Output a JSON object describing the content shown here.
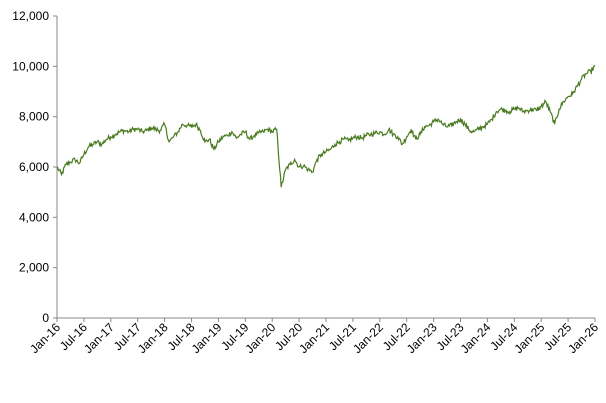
{
  "chart_data": {
    "type": "line",
    "title": "",
    "xlabel": "",
    "ylabel": "",
    "x_ticks": [
      "Jan-16",
      "Jul-16",
      "Jan-17",
      "Jul-17",
      "Jan-18",
      "Jul-18",
      "Jan-19",
      "Jul-19",
      "Jan-20",
      "Jul-20",
      "Jan-21",
      "Jul-21",
      "Jan-22",
      "Jul-22",
      "Jan-23",
      "Jul-23",
      "Jan-24",
      "Jul-24",
      "Jan-25",
      "Jul-25",
      "Jan-26"
    ],
    "y_ticks": [
      "0",
      "2,000",
      "4,000",
      "6,000",
      "8,000",
      "10,000",
      "12,000"
    ],
    "ylim": [
      0,
      12000
    ],
    "xlim": [
      "2016-01",
      "2026-01"
    ],
    "grid": false,
    "legend": "none",
    "line_color": "#4a7a1f",
    "axis_color": "#888888",
    "series": [
      {
        "x": [
          "2016-01",
          "2016-02",
          "2016-03",
          "2016-04",
          "2016-05",
          "2016-06",
          "2016-07",
          "2016-08",
          "2016-09",
          "2016-10",
          "2016-11",
          "2016-12",
          "2017-01",
          "2017-02",
          "2017-03",
          "2017-04",
          "2017-05",
          "2017-06",
          "2017-07",
          "2017-08",
          "2017-09",
          "2017-10",
          "2017-11",
          "2017-12",
          "2018-01",
          "2018-02",
          "2018-03",
          "2018-04",
          "2018-05",
          "2018-06",
          "2018-07",
          "2018-08",
          "2018-09",
          "2018-10",
          "2018-11",
          "2018-12",
          "2019-01",
          "2019-02",
          "2019-03",
          "2019-04",
          "2019-05",
          "2019-06",
          "2019-07",
          "2019-08",
          "2019-09",
          "2019-10",
          "2019-11",
          "2019-12",
          "2020-01",
          "2020-02",
          "2020-03",
          "2020-04",
          "2020-05",
          "2020-06",
          "2020-07",
          "2020-08",
          "2020-09",
          "2020-10",
          "2020-11",
          "2020-12",
          "2021-01",
          "2021-02",
          "2021-03",
          "2021-04",
          "2021-05",
          "2021-06",
          "2021-07",
          "2021-08",
          "2021-09",
          "2021-10",
          "2021-11",
          "2021-12",
          "2022-01",
          "2022-02",
          "2022-03",
          "2022-04",
          "2022-05",
          "2022-06",
          "2022-07",
          "2022-08",
          "2022-09",
          "2022-10",
          "2022-11",
          "2022-12",
          "2023-01",
          "2023-02",
          "2023-03",
          "2023-04",
          "2023-05",
          "2023-06",
          "2023-07",
          "2023-08",
          "2023-09",
          "2023-10",
          "2023-11",
          "2023-12",
          "2024-01",
          "2024-02",
          "2024-03",
          "2024-04",
          "2024-05",
          "2024-06",
          "2024-07",
          "2024-08",
          "2024-09",
          "2024-10",
          "2024-11",
          "2024-12",
          "2025-01",
          "2025-02",
          "2025-03",
          "2025-04",
          "2025-05",
          "2025-06",
          "2025-07",
          "2025-08",
          "2025-09",
          "2025-10",
          "2025-11",
          "2025-12",
          "2026-01"
        ],
        "y": [
          6000,
          5700,
          6100,
          6200,
          6300,
          6150,
          6500,
          6800,
          6900,
          7000,
          6900,
          7100,
          7200,
          7300,
          7400,
          7450,
          7400,
          7500,
          7500,
          7400,
          7450,
          7550,
          7500,
          7450,
          7700,
          7000,
          7200,
          7400,
          7700,
          7650,
          7600,
          7700,
          7450,
          7000,
          7100,
          6700,
          7000,
          7200,
          7250,
          7400,
          7150,
          7300,
          7400,
          7100,
          7250,
          7350,
          7400,
          7500,
          7400,
          7500,
          5200,
          5900,
          6100,
          6300,
          6000,
          6050,
          5900,
          5800,
          6300,
          6500,
          6600,
          6700,
          6900,
          7000,
          7100,
          7050,
          7150,
          7200,
          7150,
          7250,
          7300,
          7350,
          7400,
          7300,
          7500,
          7300,
          7200,
          6900,
          7200,
          7500,
          7100,
          7300,
          7600,
          7650,
          7800,
          7900,
          7700,
          7600,
          7650,
          7800,
          7900,
          7700,
          7450,
          7400,
          7500,
          7600,
          7700,
          7900,
          8200,
          8300,
          8250,
          8200,
          8300,
          8350,
          8200,
          8250,
          8300,
          8250,
          8400,
          8600,
          8200,
          7700,
          8300,
          8600,
          8800,
          8900,
          9200,
          9500,
          9700,
          9800,
          10000
        ]
      }
    ]
  }
}
